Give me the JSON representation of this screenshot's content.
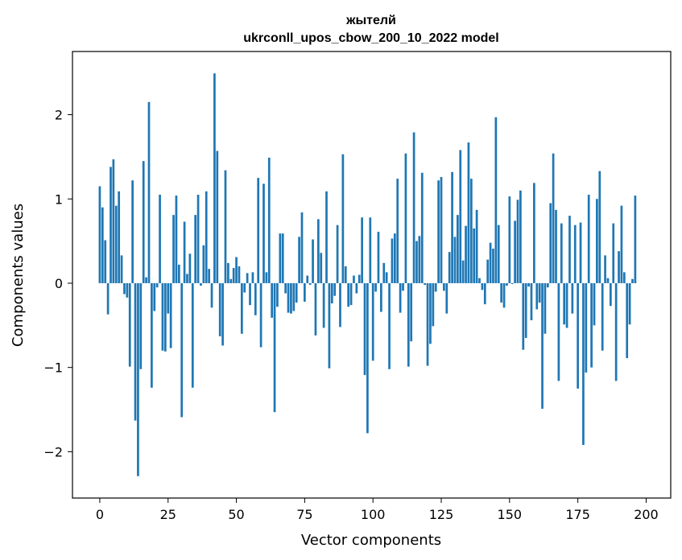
{
  "chart_data": {
    "type": "bar",
    "title": "жытелй",
    "subtitle": "ukrconll_upos_cbow_200_10_2022 model",
    "xlabel": "Vector components",
    "ylabel": "Components values",
    "xlim": [
      -10,
      209
    ],
    "ylim": [
      -2.55,
      2.75
    ],
    "xticks": [
      0,
      25,
      50,
      75,
      100,
      125,
      150,
      175,
      200
    ],
    "yticks": [
      -2,
      -1,
      0,
      1,
      2
    ],
    "ytick_labels": [
      "−2",
      "−1",
      "0",
      "1",
      "2"
    ],
    "bar_color": "#1f77b4",
    "grid": false,
    "legend": "none",
    "series": [
      {
        "values": [
          1.15,
          0.9,
          0.51,
          -0.37,
          1.38,
          1.47,
          0.92,
          1.09,
          0.33,
          -0.13,
          -0.17,
          -0.99,
          1.22,
          -1.63,
          -2.29,
          -1.02,
          1.45,
          0.07,
          2.15,
          -1.24,
          -0.33,
          -0.05,
          1.05,
          -0.8,
          -0.81,
          -0.36,
          -0.77,
          0.81,
          1.04,
          0.22,
          -1.59,
          0.73,
          0.11,
          0.35,
          -1.24,
          0.81,
          1.05,
          -0.03,
          0.45,
          1.09,
          0.17,
          -0.29,
          2.49,
          1.57,
          -0.63,
          -0.74,
          1.34,
          0.24,
          0.05,
          0.18,
          0.31,
          0.2,
          -0.6,
          -0.11,
          0.12,
          -0.26,
          0.13,
          -0.38,
          1.25,
          -0.76,
          1.18,
          0.13,
          1.49,
          -0.41,
          -1.53,
          -0.28,
          0.59,
          0.59,
          -0.12,
          -0.35,
          -0.36,
          -0.33,
          -0.23,
          0.55,
          0.84,
          -0.22,
          0.09,
          -0.02,
          0.52,
          -0.62,
          0.76,
          0.36,
          -0.53,
          1.09,
          -1.01,
          -0.24,
          -0.15,
          0.69,
          -0.52,
          1.53,
          0.2,
          -0.28,
          -0.26,
          0.09,
          -0.12,
          0.1,
          0.78,
          -1.09,
          -1.78,
          0.78,
          -0.92,
          -0.1,
          0.61,
          -0.34,
          0.24,
          0.13,
          -1.02,
          0.53,
          0.59,
          1.24,
          -0.35,
          -0.09,
          1.54,
          -0.99,
          -0.69,
          1.79,
          0.5,
          0.56,
          1.31,
          -0.02,
          -0.98,
          -0.72,
          -0.51,
          -0.1,
          1.22,
          1.26,
          -0.09,
          -0.36,
          0.37,
          1.32,
          0.55,
          0.81,
          1.58,
          0.27,
          0.68,
          1.67,
          1.24,
          0.65,
          0.87,
          0.06,
          -0.08,
          -0.25,
          0.28,
          0.48,
          0.41,
          1.97,
          0.69,
          -0.23,
          -0.29,
          -0.03,
          1.03,
          -0.01,
          0.74,
          0.99,
          1.1,
          -0.79,
          -0.65,
          -0.04,
          -0.44,
          1.19,
          -0.31,
          -0.23,
          -1.49,
          -0.6,
          -0.05,
          0.95,
          1.54,
          0.87,
          -1.16,
          0.71,
          -0.49,
          -0.53,
          0.8,
          -0.36,
          0.69,
          -1.25,
          0.72,
          -1.92,
          -1.06,
          1.05,
          -1.0,
          -0.5,
          1.0,
          1.33,
          -0.8,
          0.33,
          0.06,
          -0.27,
          0.71,
          -1.16,
          0.38,
          0.92,
          0.13,
          -0.89,
          -0.49,
          0.05,
          1.04
        ]
      }
    ]
  }
}
